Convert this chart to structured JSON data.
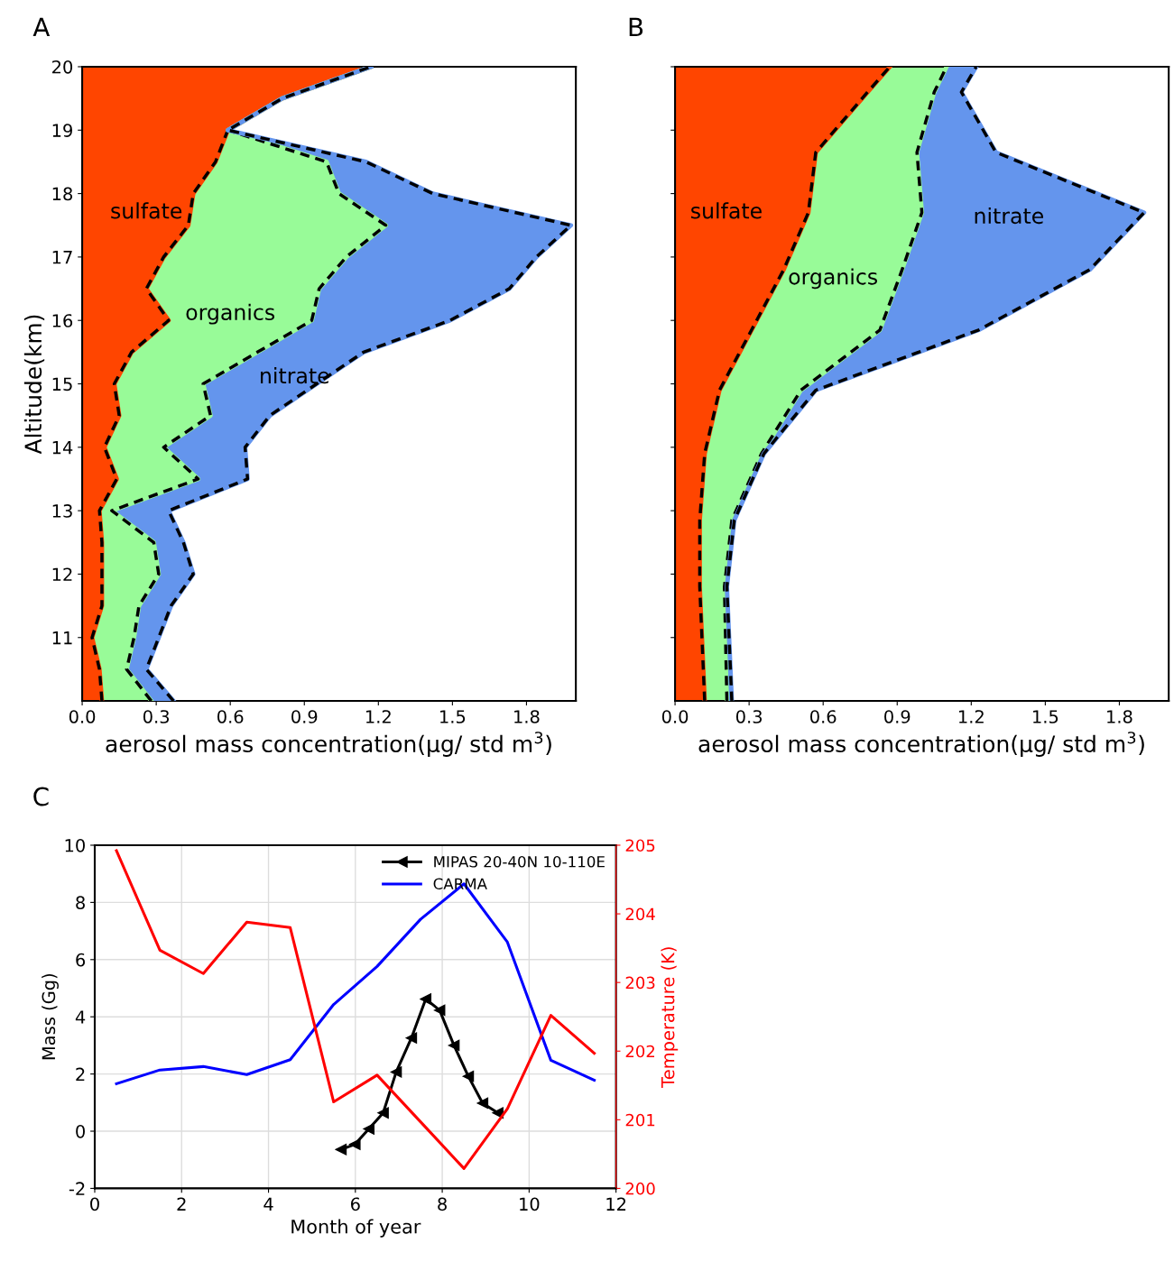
{
  "chart_data": [
    {
      "type": "area",
      "title": "A",
      "stacked": true,
      "orientation": "horizontal",
      "line_style": "dashed",
      "legend": false,
      "xlabel": "aerosol mass concentration(μg/ std m$^{3}$)",
      "ylabel": "Altitude(km)",
      "x": [
        10,
        10.5,
        11,
        11.5,
        12,
        12.5,
        13,
        13.5,
        14,
        14.5,
        15,
        15.5,
        16,
        16.5,
        17,
        17.5,
        18,
        18.5,
        19,
        19.5,
        20
      ],
      "series": [
        {
          "name": "sulfate",
          "color": "#ff4500",
          "values": [
            0.08,
            0.07,
            0.04,
            0.08,
            0.08,
            0.08,
            0.07,
            0.14,
            0.09,
            0.15,
            0.13,
            0.2,
            0.35,
            0.26,
            0.33,
            0.43,
            0.45,
            0.54,
            0.59,
            0.81,
            1.17
          ]
        },
        {
          "name": "organics",
          "color": "#98fb98",
          "values": [
            0.2,
            0.11,
            0.17,
            0.15,
            0.23,
            0.21,
            0.05,
            0.33,
            0.24,
            0.37,
            0.36,
            0.51,
            0.58,
            0.7,
            0.74,
            0.8,
            0.59,
            0.45,
            0,
            0,
            0
          ]
        },
        {
          "name": "nitrate",
          "color": "#6495ed",
          "values": [
            0.09,
            0.08,
            0.1,
            0.13,
            0.14,
            0.12,
            0.23,
            0.2,
            0.33,
            0.24,
            0.46,
            0.43,
            0.56,
            0.77,
            0.77,
            0.75,
            0.38,
            0.16,
            0,
            0,
            0
          ]
        }
      ],
      "xlim": [
        0,
        2
      ],
      "xticks": [
        {
          "value": 0,
          "label": "0.0"
        },
        0.3,
        0.6,
        0.9,
        1.2,
        1.5,
        1.8
      ],
      "ylim": [
        10,
        20
      ],
      "yticks": [
        11,
        12,
        13,
        14,
        15,
        16,
        17,
        18,
        19,
        20
      ]
    },
    {
      "type": "area",
      "title": "B",
      "stacked": true,
      "orientation": "horizontal",
      "line_style": "dashed",
      "legend": false,
      "tick_labels": "x",
      "xlabel": "aerosol mass concentration(μg/ std m$^{3}$)",
      "x": [
        10,
        11.8,
        12.85,
        13.9,
        14.9,
        15.85,
        16.8,
        17.7,
        18.65,
        19.6,
        20
      ],
      "series": [
        {
          "name": "sulfate",
          "color": "#ff4500",
          "values": [
            0.12,
            0.1,
            0.1,
            0.12,
            0.18,
            0.31,
            0.44,
            0.54,
            0.57,
            0.78,
            0.87
          ]
        },
        {
          "name": "organics",
          "color": "#98fb98",
          "values": [
            0.09,
            0.1,
            0.13,
            0.23,
            0.33,
            0.52,
            0.48,
            0.46,
            0.41,
            0.27,
            0.23
          ]
        },
        {
          "name": "nitrate",
          "color": "#6495ed",
          "values": [
            0.02,
            0.01,
            0.01,
            0.01,
            0.06,
            0.4,
            0.76,
            0.9,
            0.32,
            0.11,
            0.12
          ]
        }
      ],
      "xlim": [
        0,
        2
      ],
      "xticks": [
        {
          "value": 0,
          "label": "0.0"
        },
        0.3,
        0.6,
        0.9,
        1.2,
        1.5,
        1.8
      ],
      "ylim": [
        10,
        20
      ],
      "yticks": [
        11,
        12,
        13,
        14,
        15,
        16,
        17,
        18,
        19,
        20
      ]
    },
    {
      "type": "line",
      "title": "C",
      "xlabel": "Month of year",
      "ylabel": "Mass (Gg)",
      "y2label": "Temperature (K)",
      "grid": true,
      "legend": "top right",
      "series": [
        {
          "name": "MIPAS 20-40N 10-110E",
          "color": "#000000",
          "marker": "triangle",
          "x": [
            5.67,
            5.99,
            6.31,
            6.64,
            6.94,
            7.29,
            7.62,
            7.94,
            8.27,
            8.6,
            8.93,
            9.28
          ],
          "values": [
            -0.64,
            -0.46,
            0.08,
            0.64,
            2.07,
            3.26,
            4.62,
            4.23,
            3.0,
            1.92,
            0.98,
            0.64
          ]
        },
        {
          "name": "CARMA",
          "color": "#0000ff",
          "x": [
            0.5,
            1.5,
            2.5,
            3.5,
            4.5,
            5.5,
            6.5,
            7.5,
            8.5,
            9.5,
            10.5,
            11.5
          ],
          "values": [
            1.66,
            2.14,
            2.26,
            1.98,
            2.5,
            4.43,
            5.76,
            7.41,
            8.65,
            6.61,
            2.48,
            1.78
          ]
        },
        {
          "color": "#ff0000",
          "axis": "y2",
          "x": [
            0.5,
            1.5,
            2.5,
            3.5,
            4.5,
            5.5,
            6.5,
            7.5,
            8.5,
            9.5,
            10.5,
            11.5
          ],
          "values": [
            204.92,
            203.47,
            203.13,
            203.88,
            203.8,
            201.26,
            201.65,
            200.97,
            200.29,
            201.16,
            202.52,
            201.97
          ]
        }
      ],
      "xlim": [
        0,
        12
      ],
      "xticks": [
        0,
        2,
        4,
        6,
        8,
        10,
        12
      ],
      "ylim": [
        -2,
        10
      ],
      "yticks": [
        -2,
        0,
        2,
        4,
        6,
        8,
        10
      ],
      "y2lim": [
        200,
        205
      ],
      "y2ticks": [
        200,
        201,
        202,
        203,
        204,
        205
      ]
    }
  ]
}
